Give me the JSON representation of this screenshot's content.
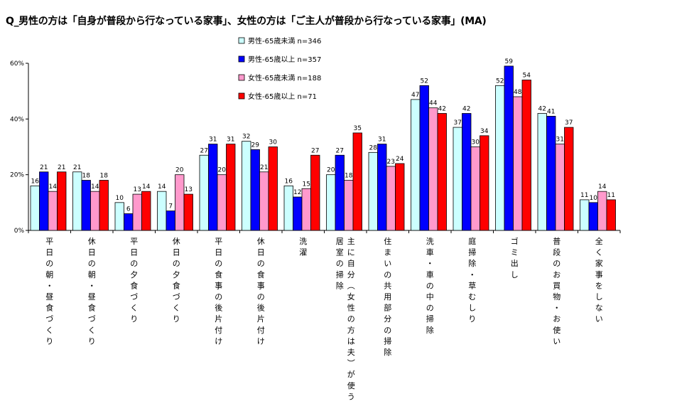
{
  "title": "Q_男性の方は「自身が普段から行なっている家事」、女性の方は「ご主人が普段から行なっている家事」(MA)",
  "chart_data": {
    "type": "bar",
    "title": "Q_男性の方は「自身が普段から行なっている家事」、女性の方は「ご主人が普段から行なっている家事」(MA)",
    "ylim": [
      0,
      60
    ],
    "yticks": [
      {
        "v": 0,
        "label": "0%"
      },
      {
        "v": 20,
        "label": "20%"
      },
      {
        "v": 40,
        "label": "40%"
      },
      {
        "v": 60,
        "label": "60%"
      }
    ],
    "legend_position": "top-center",
    "grid": false,
    "categories": [
      "平日の朝・昼食づくり",
      "休日の朝・昼食づくり",
      "平日の夕食づくり",
      "休日の夕食づくり",
      "平日の食事の後片付け",
      "休日の食事の後片付け",
      "洗濯",
      "主に自分(女性の方は夫)が使う居室の掃除",
      "住まいの共用部分の掃除",
      "洗車・車の中の掃除",
      "庭掃除・草むしり",
      "ゴミ出し",
      "普段のお買物・お使い",
      "全く家事をしない"
    ],
    "category_lines": [
      [
        "平日の朝・昼食づくり"
      ],
      [
        "休日の朝・昼食づくり"
      ],
      [
        "平日の夕食づくり"
      ],
      [
        "休日の夕食づくり"
      ],
      [
        "平日の食事の後片付け"
      ],
      [
        "休日の食事の後片付け"
      ],
      [
        "洗濯"
      ],
      [
        "主に自分(女性の方は夫)が使う",
        "居室の掃除"
      ],
      [
        "住まいの共用部分の掃除"
      ],
      [
        "洗車・車の中の掃除"
      ],
      [
        "庭掃除・草むしり"
      ],
      [
        "ゴミ出し"
      ],
      [
        "普段のお買物・お使い"
      ],
      [
        "全く家事をしない"
      ]
    ],
    "series": [
      {
        "name": "男性-65歳未満 n=346",
        "color": "#ccffff",
        "values": [
          16,
          21,
          10,
          14,
          27,
          32,
          16,
          20,
          28,
          47,
          37,
          52,
          42,
          11
        ]
      },
      {
        "name": "男性-65歳以上 n=357",
        "color": "#0000ff",
        "values": [
          21,
          18,
          6,
          7,
          31,
          29,
          12,
          27,
          31,
          52,
          42,
          59,
          41,
          10
        ]
      },
      {
        "name": "女性-65歳未満 n=188",
        "color": "#ff99cc",
        "values": [
          14,
          14,
          13,
          20,
          20,
          21,
          15,
          18,
          23,
          44,
          30,
          48,
          31,
          14
        ]
      },
      {
        "name": "女性-65歳以上 n=71",
        "color": "#ff0000",
        "values": [
          21,
          18,
          14,
          13,
          31,
          30,
          27,
          35,
          24,
          42,
          34,
          54,
          37,
          11
        ]
      }
    ]
  }
}
